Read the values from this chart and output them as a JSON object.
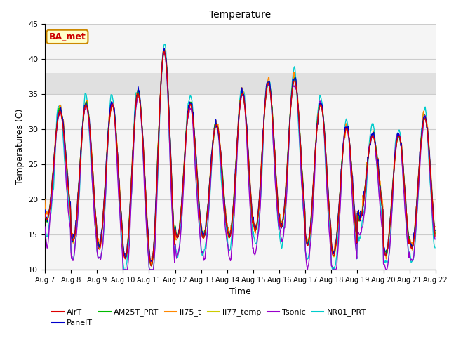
{
  "title": "Temperature",
  "xlabel": "Time",
  "ylabel": "Temperatures (C)",
  "ylim": [
    10,
    45
  ],
  "yticks": [
    10,
    15,
    20,
    25,
    30,
    35,
    40,
    45
  ],
  "shaded_band": [
    35,
    38
  ],
  "xtick_labels": [
    "Aug 7",
    "Aug 8",
    "Aug 9",
    "Aug 10",
    "Aug 11",
    "Aug 12",
    "Aug 13",
    "Aug 14",
    "Aug 15",
    "Aug 16",
    "Aug 17",
    "Aug 18",
    "Aug 19",
    "Aug 20",
    "Aug 21",
    "Aug 22"
  ],
  "series_colors": {
    "AirT": "#dd0000",
    "PanelT": "#0000cc",
    "AM25T_PRT": "#00bb00",
    "li75_t": "#ff8800",
    "li77_temp": "#cccc00",
    "Tsonic": "#9900cc",
    "NR01_PRT": "#00cccc"
  },
  "annotation_text": "BA_met",
  "annotation_color": "#cc0000",
  "annotation_bg": "#ffffcc",
  "annotation_border": "#cc8800",
  "plot_bg_color": "#f5f5f5",
  "shaded_color": "#e0e0e0",
  "grid_color": "#cccccc"
}
